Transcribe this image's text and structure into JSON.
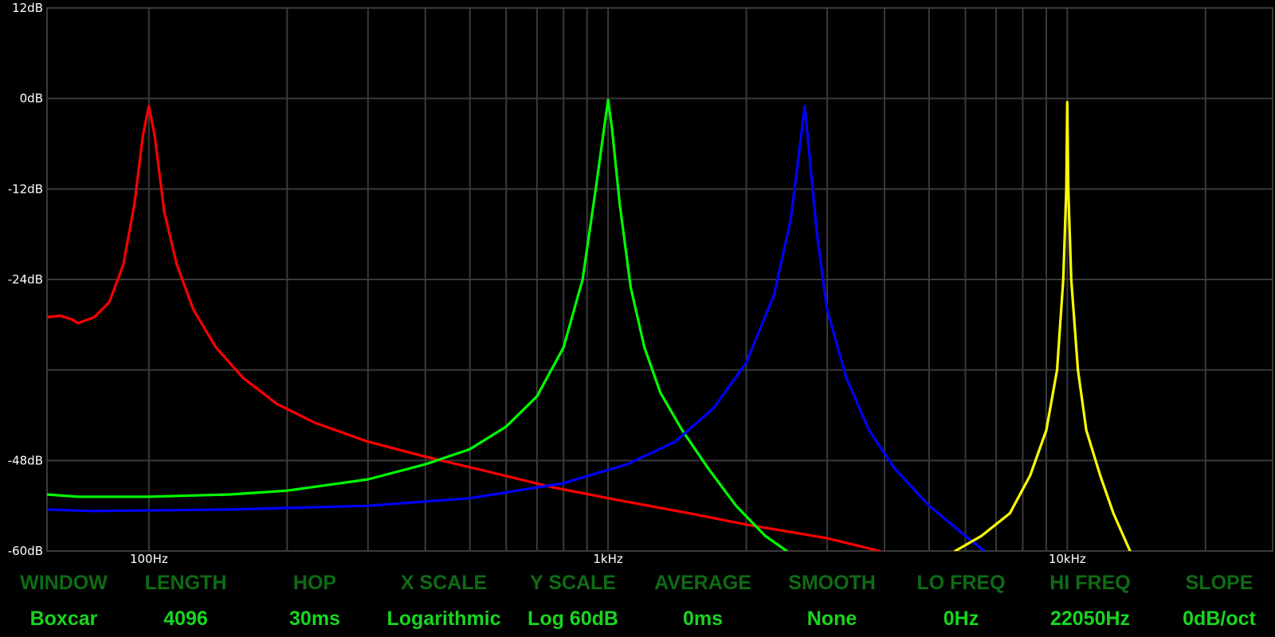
{
  "chart_data": {
    "type": "line",
    "xscale": "log",
    "xlim": [
      60,
      28000
    ],
    "ylim": [
      -60,
      12
    ],
    "grid": true,
    "yticks": [
      {
        "value": 12,
        "label": "12dB"
      },
      {
        "value": 0,
        "label": "0dB"
      },
      {
        "value": -12,
        "label": "-12dB"
      },
      {
        "value": -24,
        "label": "-24dB"
      },
      {
        "value": -48,
        "label": "-48dB"
      },
      {
        "value": -60,
        "label": "-60dB"
      }
    ],
    "ygrid": [
      12,
      0,
      -12,
      -24,
      -36,
      -48,
      -60
    ],
    "xticks": [
      {
        "value": 100,
        "label": "100Hz"
      },
      {
        "value": 1000,
        "label": "1kHz"
      },
      {
        "value": 10000,
        "label": "10kHz"
      }
    ],
    "xgrid": [
      100,
      200,
      300,
      400,
      500,
      600,
      700,
      800,
      900,
      1000,
      2000,
      3000,
      4000,
      5000,
      6000,
      7000,
      8000,
      9000,
      10000,
      20000
    ],
    "series": [
      {
        "color": "#ff0000",
        "points": [
          [
            60,
            -29
          ],
          [
            64,
            -28.8
          ],
          [
            68,
            -29.3
          ],
          [
            70,
            -29.8
          ],
          [
            76,
            -29
          ],
          [
            82,
            -27
          ],
          [
            88,
            -22
          ],
          [
            93,
            -14
          ],
          [
            97,
            -5
          ],
          [
            100,
            -1
          ],
          [
            103,
            -5
          ],
          [
            108,
            -15
          ],
          [
            115,
            -22
          ],
          [
            125,
            -28
          ],
          [
            140,
            -33
          ],
          [
            160,
            -37
          ],
          [
            190,
            -40.5
          ],
          [
            230,
            -43
          ],
          [
            300,
            -45.5
          ],
          [
            400,
            -47.5
          ],
          [
            550,
            -49.5
          ],
          [
            750,
            -51.5
          ],
          [
            1000,
            -53
          ],
          [
            1500,
            -55
          ],
          [
            2000,
            -56.5
          ],
          [
            3000,
            -58.3
          ],
          [
            3900,
            -60
          ]
        ]
      },
      {
        "color": "#00ff00",
        "points": [
          [
            60,
            -52.5
          ],
          [
            70,
            -52.8
          ],
          [
            100,
            -52.8
          ],
          [
            150,
            -52.5
          ],
          [
            200,
            -52
          ],
          [
            300,
            -50.5
          ],
          [
            400,
            -48.5
          ],
          [
            500,
            -46.5
          ],
          [
            600,
            -43.5
          ],
          [
            700,
            -39.5
          ],
          [
            800,
            -33
          ],
          [
            880,
            -24
          ],
          [
            940,
            -12
          ],
          [
            980,
            -4
          ],
          [
            1000,
            -0.2
          ],
          [
            1020,
            -4
          ],
          [
            1060,
            -14
          ],
          [
            1120,
            -25
          ],
          [
            1200,
            -33
          ],
          [
            1300,
            -39
          ],
          [
            1450,
            -44
          ],
          [
            1650,
            -49
          ],
          [
            1900,
            -54
          ],
          [
            2200,
            -58
          ],
          [
            2450,
            -60
          ]
        ]
      },
      {
        "color": "#0000ff",
        "points": [
          [
            60,
            -54.5
          ],
          [
            75,
            -54.7
          ],
          [
            150,
            -54.5
          ],
          [
            300,
            -54
          ],
          [
            500,
            -53
          ],
          [
            800,
            -51
          ],
          [
            1100,
            -48.5
          ],
          [
            1400,
            -45.5
          ],
          [
            1700,
            -41
          ],
          [
            2000,
            -35
          ],
          [
            2300,
            -26
          ],
          [
            2500,
            -16
          ],
          [
            2620,
            -6
          ],
          [
            2680,
            -1
          ],
          [
            2730,
            -6
          ],
          [
            2850,
            -18
          ],
          [
            3000,
            -28
          ],
          [
            3300,
            -37
          ],
          [
            3700,
            -44
          ],
          [
            4200,
            -49
          ],
          [
            5000,
            -54
          ],
          [
            6000,
            -58
          ],
          [
            6600,
            -60
          ]
        ]
      },
      {
        "color": "#ffff00",
        "points": [
          [
            5700,
            -60
          ],
          [
            6500,
            -58
          ],
          [
            7500,
            -55
          ],
          [
            8300,
            -50
          ],
          [
            9000,
            -44
          ],
          [
            9500,
            -36
          ],
          [
            9800,
            -24
          ],
          [
            9950,
            -12
          ],
          [
            10000,
            -0.5
          ],
          [
            10050,
            -12
          ],
          [
            10200,
            -24
          ],
          [
            10550,
            -36
          ],
          [
            11000,
            -44
          ],
          [
            11800,
            -50
          ],
          [
            12600,
            -55
          ],
          [
            13700,
            -60
          ]
        ]
      }
    ]
  },
  "settings": [
    {
      "label": "WINDOW",
      "value": "Boxcar"
    },
    {
      "label": "LENGTH",
      "value": "4096"
    },
    {
      "label": "HOP",
      "value": "30ms"
    },
    {
      "label": "X SCALE",
      "value": "Logarithmic"
    },
    {
      "label": "Y SCALE",
      "value": "Log 60dB"
    },
    {
      "label": "AVERAGE",
      "value": "0ms"
    },
    {
      "label": "SMOOTH",
      "value": "None"
    },
    {
      "label": "LO FREQ",
      "value": "0Hz"
    },
    {
      "label": "HI FREQ",
      "value": "22050Hz"
    },
    {
      "label": "SLOPE",
      "value": "0dB/oct"
    }
  ]
}
